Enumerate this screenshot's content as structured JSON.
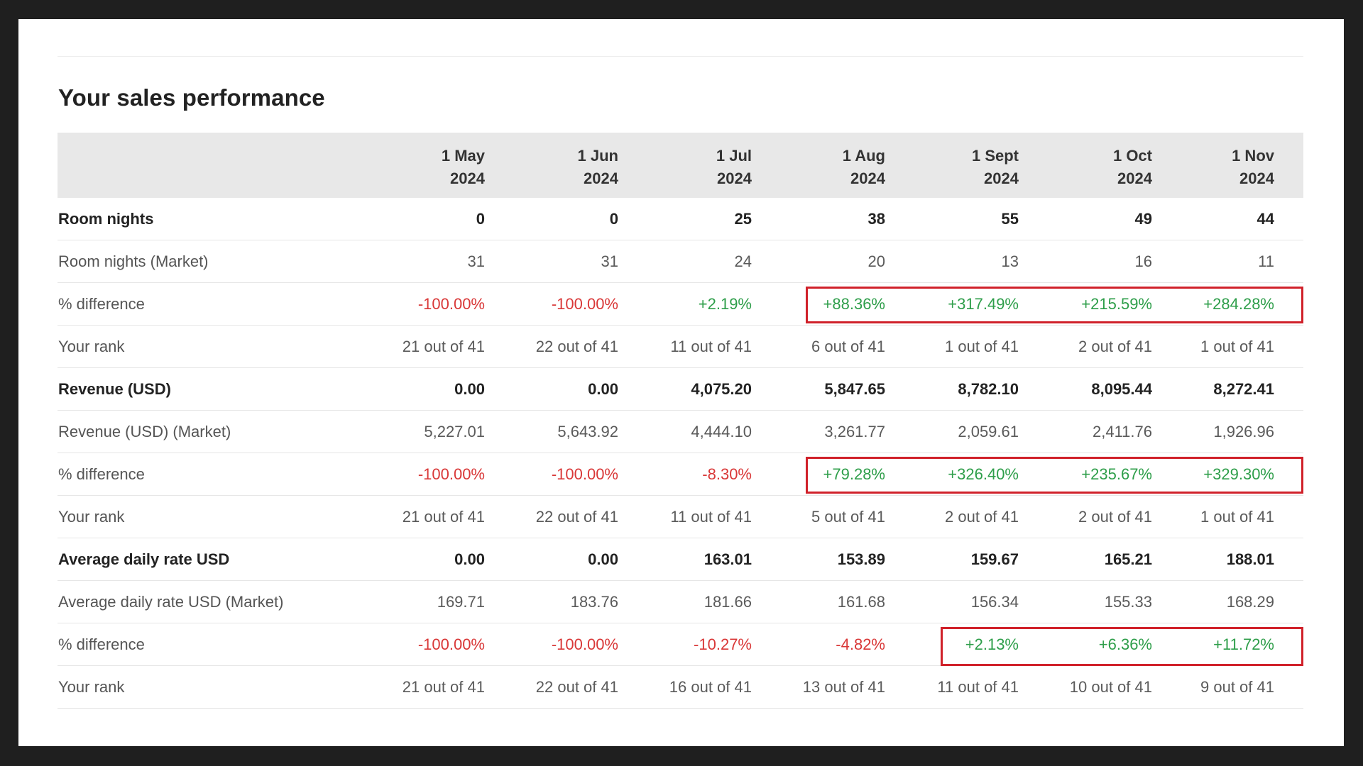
{
  "title": "Your sales performance",
  "columns": [
    {
      "line1": "1 May",
      "line2": "2024"
    },
    {
      "line1": "1 Jun",
      "line2": "2024"
    },
    {
      "line1": "1 Jul",
      "line2": "2024"
    },
    {
      "line1": "1 Aug",
      "line2": "2024"
    },
    {
      "line1": "1 Sept",
      "line2": "2024"
    },
    {
      "line1": "1 Oct",
      "line2": "2024"
    },
    {
      "line1": "1 Nov",
      "line2": "2024"
    }
  ],
  "rows": [
    {
      "label": "Room nights",
      "values": [
        "0",
        "0",
        "25",
        "38",
        "55",
        "49",
        "44"
      ]
    },
    {
      "label": "Room nights (Market)",
      "values": [
        "31",
        "31",
        "24",
        "20",
        "13",
        "16",
        "11"
      ]
    },
    {
      "label": "% difference",
      "values": [
        "-100.00%",
        "-100.00%",
        "+2.19%",
        "+88.36%",
        "+317.49%",
        "+215.59%",
        "+284.28%"
      ]
    },
    {
      "label": "Your rank",
      "values": [
        "21 out of 41",
        "22 out of 41",
        "11 out of 41",
        "6 out of 41",
        "1 out of 41",
        "2 out of 41",
        "1 out of 41"
      ]
    },
    {
      "label": "Revenue (USD)",
      "values": [
        "0.00",
        "0.00",
        "4,075.20",
        "5,847.65",
        "8,782.10",
        "8,095.44",
        "8,272.41"
      ]
    },
    {
      "label": "Revenue (USD) (Market)",
      "values": [
        "5,227.01",
        "5,643.92",
        "4,444.10",
        "3,261.77",
        "2,059.61",
        "2,411.76",
        "1,926.96"
      ]
    },
    {
      "label": "% difference",
      "values": [
        "-100.00%",
        "-100.00%",
        "-8.30%",
        "+79.28%",
        "+326.40%",
        "+235.67%",
        "+329.30%"
      ]
    },
    {
      "label": "Your rank",
      "values": [
        "21 out of 41",
        "22 out of 41",
        "11 out of 41",
        "5 out of 41",
        "2 out of 41",
        "2 out of 41",
        "1 out of 41"
      ]
    },
    {
      "label": "Average daily rate USD",
      "values": [
        "0.00",
        "0.00",
        "163.01",
        "153.89",
        "159.67",
        "165.21",
        "188.01"
      ]
    },
    {
      "label": "Average daily rate USD (Market)",
      "values": [
        "169.71",
        "183.76",
        "181.66",
        "161.68",
        "156.34",
        "155.33",
        "168.29"
      ]
    },
    {
      "label": "% difference",
      "values": [
        "-100.00%",
        "-100.00%",
        "-10.27%",
        "-4.82%",
        "+2.13%",
        "+6.36%",
        "+11.72%"
      ]
    },
    {
      "label": "Your rank",
      "values": [
        "21 out of 41",
        "22 out of 41",
        "16 out of 41",
        "13 out of 41",
        "11 out of 41",
        "10 out of 41",
        "9 out of 41"
      ]
    }
  ],
  "colors": {
    "positive": "#2e9e4a",
    "negative": "#d93838",
    "highlight_border": "#d0212a",
    "header_background": "#e8e8e8"
  }
}
